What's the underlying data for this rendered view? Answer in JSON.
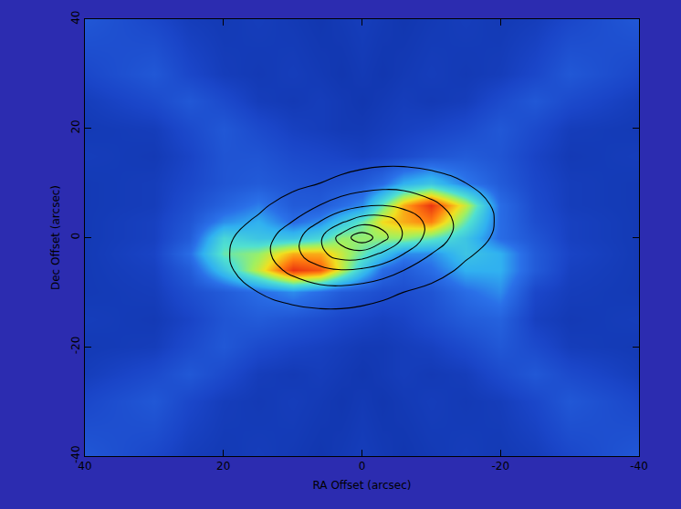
{
  "chart_data": {
    "type": "heatmap_contour",
    "x_title": "RA Offset (arcsec)",
    "y_title": "Dec Offset (arcsec)",
    "xlim": [
      40,
      -40
    ],
    "ylim": [
      -40,
      40
    ],
    "xticks": [
      -40,
      -20,
      0,
      20,
      40
    ],
    "yticks": [
      -40,
      -20,
      0,
      20,
      40
    ],
    "grid": false,
    "x": [
      -40,
      -30,
      -25,
      -20,
      -15,
      -10,
      -6,
      -3,
      0,
      3,
      6,
      10,
      15,
      20,
      25,
      30,
      40
    ],
    "y": [
      -40,
      -30,
      -25,
      -20,
      -15,
      -10,
      -6,
      -3,
      0,
      3,
      6,
      10,
      15,
      20,
      25,
      30,
      40
    ],
    "zlim": [
      1.5,
      10
    ],
    "cells": [
      [
        2.9,
        2.4,
        2.1,
        2.0,
        2.1,
        2.0,
        1.9,
        2.0,
        2.1,
        2.0,
        1.9,
        2.0,
        2.1,
        2.0,
        2.1,
        2.4,
        2.9
      ],
      [
        2.4,
        2.9,
        2.4,
        2.1,
        2.0,
        2.1,
        2.0,
        1.9,
        2.0,
        1.9,
        2.0,
        2.1,
        2.0,
        2.1,
        2.4,
        2.9,
        2.4
      ],
      [
        2.1,
        2.5,
        2.9,
        2.5,
        2.1,
        2.0,
        2.1,
        2.0,
        1.9,
        2.0,
        2.1,
        2.0,
        2.1,
        2.5,
        2.9,
        2.5,
        2.1
      ],
      [
        2.0,
        2.1,
        2.5,
        2.9,
        2.5,
        2.2,
        2.1,
        2.0,
        2.0,
        2.1,
        2.2,
        2.3,
        2.5,
        2.9,
        2.5,
        2.1,
        2.0
      ],
      [
        2.1,
        2.0,
        2.2,
        3.2,
        3.0,
        2.6,
        2.3,
        2.2,
        2.3,
        2.4,
        2.6,
        2.8,
        3.0,
        2.8,
        2.3,
        2.0,
        2.1
      ],
      [
        2.0,
        2.1,
        2.4,
        4.0,
        3.5,
        2.8,
        2.6,
        2.6,
        2.8,
        3.0,
        3.5,
        4.0,
        3.5,
        3.0,
        2.6,
        2.1,
        2.0
      ],
      [
        2.0,
        2.2,
        3.0,
        4.5,
        4.5,
        3.5,
        3.0,
        3.5,
        5.0,
        7.0,
        9.0,
        9.5,
        7.0,
        5.0,
        3.0,
        2.2,
        2.0
      ],
      [
        2.0,
        2.3,
        3.0,
        4.5,
        5.0,
        4.0,
        4.0,
        5.0,
        6.0,
        7.0,
        8.0,
        8.0,
        6.5,
        6.0,
        3.5,
        2.3,
        2.0
      ],
      [
        2.0,
        2.2,
        2.8,
        3.5,
        5.0,
        6.0,
        6.5,
        6.5,
        6.5,
        6.5,
        5.5,
        5.0,
        5.0,
        5.5,
        3.0,
        2.2,
        2.0
      ],
      [
        2.0,
        2.2,
        2.6,
        3.5,
        6.0,
        8.5,
        8.0,
        7.5,
        6.0,
        5.0,
        4.0,
        3.5,
        4.5,
        4.0,
        2.8,
        2.2,
        2.0
      ],
      [
        2.0,
        2.1,
        2.5,
        3.5,
        7.0,
        9.5,
        8.0,
        6.0,
        4.0,
        3.5,
        3.0,
        3.0,
        3.8,
        3.2,
        2.6,
        2.1,
        2.0
      ],
      [
        2.0,
        2.1,
        2.4,
        3.0,
        3.8,
        5.0,
        4.5,
        3.5,
        3.0,
        2.8,
        2.7,
        2.8,
        3.0,
        2.8,
        2.4,
        2.1,
        2.0
      ],
      [
        2.1,
        2.0,
        2.3,
        2.8,
        3.0,
        2.8,
        2.5,
        2.3,
        2.2,
        2.3,
        2.4,
        2.5,
        2.8,
        2.8,
        2.3,
        2.0,
        2.1
      ],
      [
        2.0,
        2.1,
        2.5,
        2.9,
        2.5,
        2.3,
        2.2,
        2.1,
        2.0,
        2.0,
        2.1,
        2.2,
        2.5,
        2.9,
        2.5,
        2.1,
        2.0
      ],
      [
        2.1,
        2.5,
        2.9,
        2.5,
        2.1,
        2.0,
        2.1,
        2.0,
        1.9,
        2.0,
        2.1,
        2.0,
        2.1,
        2.5,
        2.9,
        2.5,
        2.1
      ],
      [
        2.4,
        2.9,
        2.4,
        2.1,
        2.0,
        2.1,
        2.0,
        1.9,
        2.0,
        1.9,
        2.0,
        2.1,
        2.0,
        2.1,
        2.4,
        2.9,
        2.4
      ],
      [
        2.9,
        2.4,
        2.1,
        2.0,
        2.1,
        2.0,
        1.9,
        2.0,
        2.1,
        2.0,
        1.9,
        2.0,
        2.1,
        2.0,
        2.1,
        2.4,
        2.9
      ]
    ],
    "contours": {
      "color": "#000000",
      "levels": {
        "start": 15,
        "end": 90,
        "size": 15
      },
      "values": [
        [
          0,
          0,
          0,
          0,
          0,
          0,
          0,
          0,
          0,
          0,
          0,
          0,
          0,
          0,
          0,
          0,
          0
        ],
        [
          0,
          0,
          0,
          0,
          0,
          0,
          0,
          0,
          0,
          0,
          0,
          0,
          0,
          0,
          0,
          0,
          0
        ],
        [
          0,
          0,
          0,
          0,
          0,
          0,
          0,
          0,
          0,
          0,
          0,
          0,
          0,
          0,
          0,
          0,
          0
        ],
        [
          0,
          0,
          0,
          0,
          0,
          0,
          0,
          0,
          0,
          0,
          0,
          0,
          0,
          0,
          0,
          0,
          0
        ],
        [
          0,
          0,
          0,
          0,
          0,
          1,
          4,
          6,
          8,
          9,
          9,
          8,
          7,
          4,
          0,
          0,
          0
        ],
        [
          0,
          0,
          0,
          0,
          6,
          11,
          15,
          19,
          22,
          24,
          24,
          21,
          15,
          10,
          4,
          0,
          0
        ],
        [
          0,
          0,
          0,
          6,
          12,
          21,
          30,
          37,
          42,
          44,
          41,
          33,
          22,
          12,
          6,
          0,
          0
        ],
        [
          0,
          0,
          2,
          9,
          17,
          30,
          45,
          57,
          68,
          68,
          56,
          40,
          24,
          13,
          6,
          0,
          0
        ],
        [
          0,
          0,
          4,
          12,
          22,
          39,
          58,
          81,
          100,
          81,
          58,
          39,
          22,
          12,
          4,
          0,
          0
        ],
        [
          0,
          0,
          6,
          13,
          24,
          40,
          56,
          68,
          68,
          57,
          45,
          30,
          17,
          9,
          2,
          0,
          0
        ],
        [
          0,
          0,
          6,
          12,
          22,
          33,
          41,
          44,
          42,
          37,
          30,
          21,
          12,
          6,
          0,
          0,
          0
        ],
        [
          0,
          0,
          4,
          10,
          15,
          21,
          24,
          24,
          22,
          19,
          15,
          11,
          6,
          0,
          0,
          0,
          0
        ],
        [
          0,
          0,
          0,
          4,
          7,
          8,
          9,
          9,
          8,
          6,
          4,
          1,
          0,
          0,
          0,
          0,
          0
        ],
        [
          0,
          0,
          0,
          0,
          0,
          0,
          0,
          0,
          0,
          0,
          0,
          0,
          0,
          0,
          0,
          0,
          0
        ],
        [
          0,
          0,
          0,
          0,
          0,
          0,
          0,
          0,
          0,
          0,
          0,
          0,
          0,
          0,
          0,
          0,
          0
        ],
        [
          0,
          0,
          0,
          0,
          0,
          0,
          0,
          0,
          0,
          0,
          0,
          0,
          0,
          0,
          0,
          0,
          0
        ],
        [
          0,
          0,
          0,
          0,
          0,
          0,
          0,
          0,
          0,
          0,
          0,
          0,
          0,
          0,
          0,
          0,
          0
        ]
      ]
    }
  }
}
